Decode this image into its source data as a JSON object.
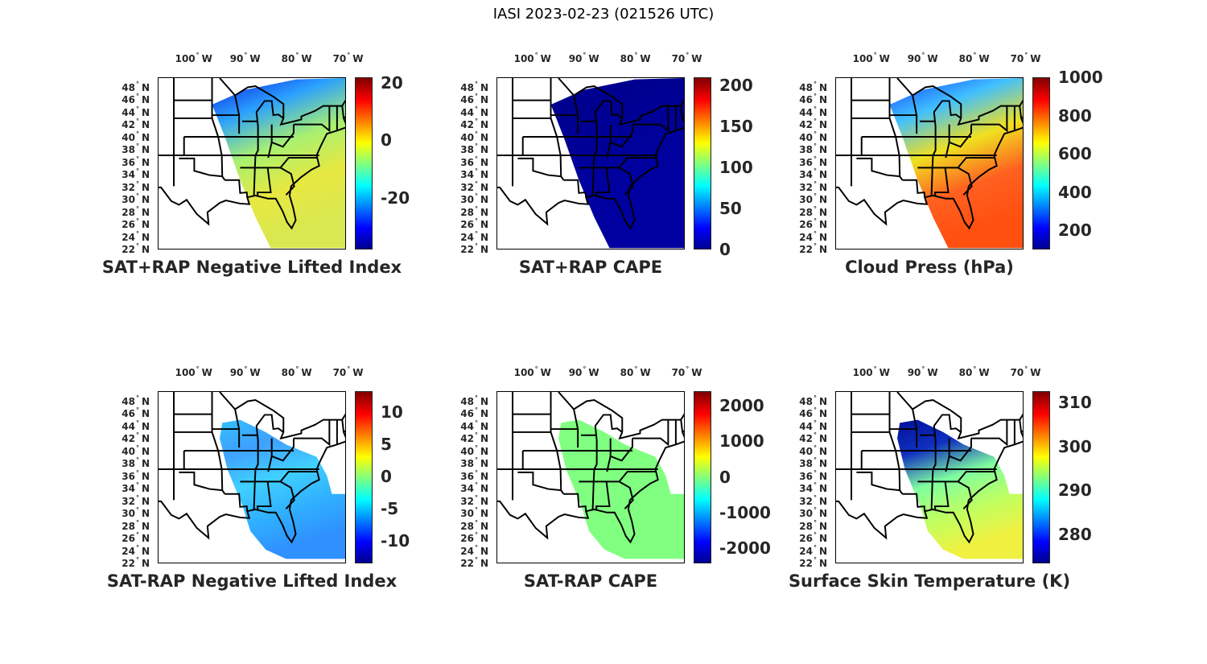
{
  "figure_title": "IASI 2023-02-23 (021526 UTC)",
  "axes": {
    "lon_ticks": [
      {
        "value": -100,
        "label": "100",
        "hemi": "W"
      },
      {
        "value": -90,
        "label": "90",
        "hemi": "W"
      },
      {
        "value": -80,
        "label": "80",
        "hemi": "W"
      },
      {
        "value": -70,
        "label": "70",
        "hemi": "W"
      }
    ],
    "lat_ticks": [
      {
        "value": 48,
        "label": "48",
        "hemi": "N"
      },
      {
        "value": 46,
        "label": "46",
        "hemi": "N"
      },
      {
        "value": 44,
        "label": "44",
        "hemi": "N"
      },
      {
        "value": 42,
        "label": "42",
        "hemi": "N"
      },
      {
        "value": 40,
        "label": "40",
        "hemi": "N"
      },
      {
        "value": 38,
        "label": "38",
        "hemi": "N"
      },
      {
        "value": 36,
        "label": "36",
        "hemi": "N"
      },
      {
        "value": 34,
        "label": "34",
        "hemi": "N"
      },
      {
        "value": 32,
        "label": "32",
        "hemi": "N"
      },
      {
        "value": 30,
        "label": "30",
        "hemi": "N"
      },
      {
        "value": 28,
        "label": "28",
        "hemi": "N"
      },
      {
        "value": 26,
        "label": "26",
        "hemi": "N"
      },
      {
        "value": 24,
        "label": "24",
        "hemi": "N"
      },
      {
        "value": 22,
        "label": "22",
        "hemi": "N"
      }
    ],
    "lon_range": [
      -107,
      -70.4
    ],
    "lat_range": [
      21.9,
      49.5
    ]
  },
  "panels": [
    {
      "title": "SAT+RAP Negative Lifted Index",
      "clim": [
        -38,
        22
      ],
      "cticks": [
        20,
        0,
        -20
      ],
      "swath": "full",
      "colors": [
        "#0a1ee0",
        "#2aa0ff",
        "#a8f070",
        "#e8e840",
        "#d8e850"
      ]
    },
    {
      "title": "SAT+RAP CAPE",
      "clim": [
        0,
        210
      ],
      "cticks": [
        200,
        150,
        100,
        50,
        0
      ],
      "swath": "full",
      "colors": [
        "#00008f",
        "#000090",
        "#00009a",
        "#0000a0",
        "#0000a0"
      ]
    },
    {
      "title": "Cloud Press (hPa)",
      "clim": [
        100,
        1000
      ],
      "cticks": [
        1000,
        800,
        600,
        400,
        200
      ],
      "swath": "full",
      "colors": [
        "#1040ff",
        "#40c0ff",
        "#f0e020",
        "#ff6020",
        "#ff5010"
      ]
    },
    {
      "title": "SAT-RAP Negative Lifted Index",
      "clim": [
        -13.5,
        13.3
      ],
      "cticks": [
        10,
        5,
        0,
        -5,
        -10
      ],
      "swath": "partial",
      "colors": [
        "#30c0ff",
        "#40a0ff",
        "#40d0ff",
        "#30b0ff",
        "#3090ff"
      ]
    },
    {
      "title": "SAT-RAP CAPE",
      "clim": [
        -2430,
        2410
      ],
      "cticks": [
        2000,
        1000,
        0,
        -1000,
        -2000
      ],
      "swath": "partial",
      "colors": [
        "#80ff80",
        "#80ff80",
        "#80ff80",
        "#80ff80",
        "#80ff80"
      ]
    },
    {
      "title": "Surface Skin Temperature (K)",
      "clim": [
        273.4,
        312.6
      ],
      "cticks": [
        310,
        300,
        290,
        280
      ],
      "swath": "partial",
      "colors": [
        "#00109a",
        "#1030c0",
        "#80ffa0",
        "#c0ff60",
        "#f0f040"
      ]
    }
  ]
}
